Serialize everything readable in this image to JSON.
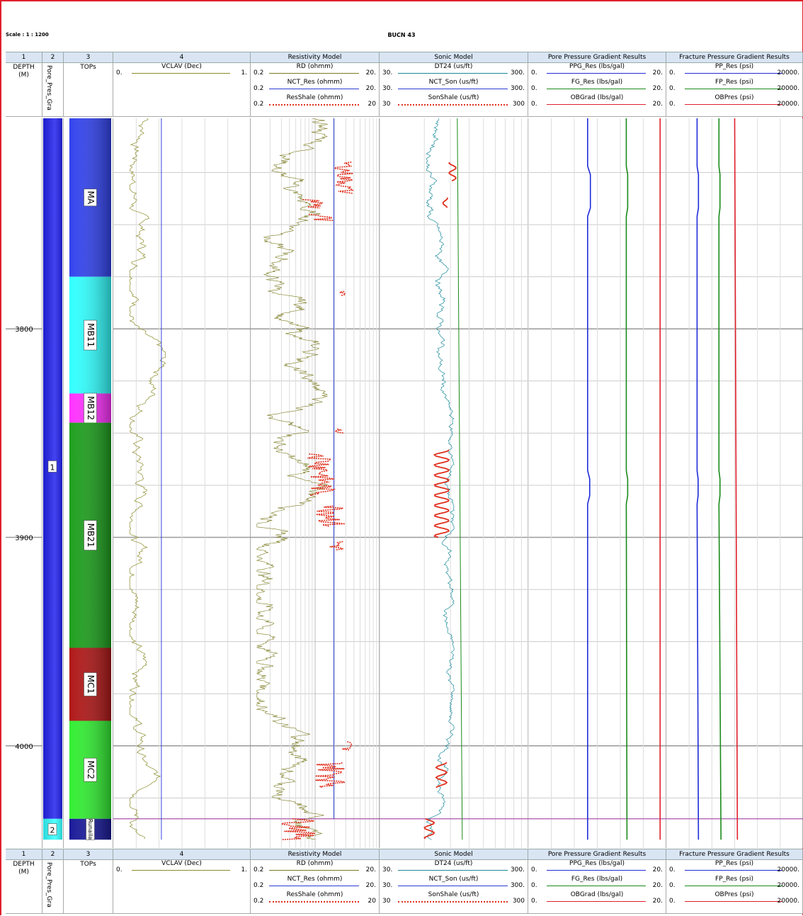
{
  "header": {
    "scale": "Scale : 1 : 1200",
    "well": "BUCN 43"
  },
  "track_numbers": [
    "1",
    "2",
    "3",
    "4",
    "",
    "",
    "",
    ""
  ],
  "tracks": [
    {
      "number": "1",
      "title": "DEPTH (M)"
    },
    {
      "number": "2",
      "title": "Pore_Pres_Gra"
    },
    {
      "number": "3",
      "title": "TOPs"
    },
    {
      "number": "4",
      "title": "",
      "curves": [
        {
          "name": "VCLAV (Dec)",
          "min": "0.",
          "max": "1.",
          "color": "#8b8b2b"
        }
      ]
    },
    {
      "number": "",
      "title": "Resistivity Model",
      "curves": [
        {
          "name": "RD (ohmm)",
          "min": "0.2",
          "max": "20.",
          "color": "#7a7a20"
        },
        {
          "name": "NCT_Res (ohmm)",
          "min": "0.2",
          "max": "20.",
          "color": "#2b3bd6"
        },
        {
          "name": "ResShale (ohmm)",
          "min": "0.2",
          "max": "20",
          "color": "#e0301e"
        }
      ]
    },
    {
      "number": "",
      "title": "Sonic Model",
      "curves": [
        {
          "name": "DT24 (us/ft)",
          "min": "30.",
          "max": "300.",
          "color": "#1a8a9a"
        },
        {
          "name": "NCT_Son (us/ft)",
          "min": "30.",
          "max": "300.",
          "color": "#2b3bd6"
        },
        {
          "name": "SonShale (us/ft)",
          "min": "30",
          "max": "300",
          "color": "#e0301e"
        }
      ]
    },
    {
      "number": "",
      "title": "Pore Pressure Gradient Results",
      "curves": [
        {
          "name": "PPG_Res (lbs/gal)",
          "min": "0.",
          "max": "20.",
          "color": "#1f2bd8"
        },
        {
          "name": "FG_Res (lbs/gal)",
          "min": "0.",
          "max": "20.",
          "color": "#1a8a1a"
        },
        {
          "name": "OBGrad (lbs/gal)",
          "min": "0.",
          "max": "20.",
          "color": "#e0202c"
        }
      ]
    },
    {
      "number": "",
      "title": "Fracture Pressure Gradient Results",
      "curves": [
        {
          "name": "PP_Res (psi)",
          "min": "0.",
          "max": "20000.",
          "color": "#1f2bd8"
        },
        {
          "name": "FP_Res (psi)",
          "min": "0.",
          "max": "20000.",
          "color": "#1a8a1a"
        },
        {
          "name": "OBPres (psi)",
          "min": "0.",
          "max": "20000.",
          "color": "#e0202c"
        }
      ]
    }
  ],
  "chart_data": {
    "type": "line",
    "title": "BUCN 43",
    "ylabel": "DEPTH (M)",
    "depth_range": [
      3699,
      4049
    ],
    "depth_ticks": [
      3800,
      3900,
      4000
    ],
    "zones_track2": [
      {
        "label": "1",
        "top": 3699,
        "bottom": 4035,
        "color": "#2222ee"
      },
      {
        "label": "2",
        "top": 4035,
        "bottom": 4045,
        "color": "#33ffff"
      }
    ],
    "formation_tops": [
      {
        "name": "MA",
        "top": 3699,
        "bottom": 3775,
        "color": "#3344ee"
      },
      {
        "name": "MB11",
        "top": 3775,
        "bottom": 3831,
        "color": "#33ffff"
      },
      {
        "name": "MB12",
        "top": 3831,
        "bottom": 3845,
        "color": "#ff33ff"
      },
      {
        "name": "MB21",
        "top": 3845,
        "bottom": 3953,
        "color": "#1ea01e"
      },
      {
        "name": "MC1",
        "top": 3953,
        "bottom": 3988,
        "color": "#b01818"
      },
      {
        "name": "MC2",
        "top": 3988,
        "bottom": 4035,
        "color": "#33ee33"
      },
      {
        "name": "Runaila",
        "top": 4035,
        "bottom": 4045,
        "color": "#1a1a9a"
      }
    ],
    "series": [
      {
        "name": "NCT_Res (ohmm)",
        "constant": 3.9
      },
      {
        "name": "NCT_Son (us/ft)",
        "points": [
          [
            3699,
            100
          ],
          [
            4045,
            108
          ]
        ]
      },
      {
        "name": "PPG_Res (lbs/gal)",
        "points": [
          [
            3699,
            8.6
          ],
          [
            3722,
            8.6
          ],
          [
            3726,
            9.0
          ],
          [
            3742,
            9.0
          ],
          [
            3746,
            8.6
          ],
          [
            3868,
            8.6
          ],
          [
            3872,
            8.9
          ],
          [
            3880,
            8.9
          ],
          [
            3884,
            8.6
          ],
          [
            4045,
            8.6
          ]
        ]
      },
      {
        "name": "FG_Res (lbs/gal)",
        "points": [
          [
            3699,
            14.2
          ],
          [
            3722,
            14.2
          ],
          [
            3726,
            14.4
          ],
          [
            3742,
            14.4
          ],
          [
            3746,
            14.2
          ],
          [
            3868,
            14.2
          ],
          [
            3872,
            14.4
          ],
          [
            3880,
            14.4
          ],
          [
            3884,
            14.2
          ],
          [
            4045,
            14.3
          ]
        ]
      },
      {
        "name": "OBGrad (lbs/gal)",
        "points": [
          [
            3699,
            19.1
          ],
          [
            4045,
            19.1
          ]
        ]
      },
      {
        "name": "PP_Res (psi)",
        "points": [
          [
            3699,
            4500
          ],
          [
            3722,
            4500
          ],
          [
            3726,
            4700
          ],
          [
            3742,
            4700
          ],
          [
            3746,
            4500
          ],
          [
            3868,
            4500
          ],
          [
            3872,
            4650
          ],
          [
            3880,
            4650
          ],
          [
            3884,
            4500
          ],
          [
            4045,
            4700
          ]
        ]
      },
      {
        "name": "FP_Res (psi)",
        "points": [
          [
            3699,
            7700
          ],
          [
            3722,
            7700
          ],
          [
            3726,
            7850
          ],
          [
            3742,
            7850
          ],
          [
            3746,
            7700
          ],
          [
            3868,
            7700
          ],
          [
            3872,
            7850
          ],
          [
            3880,
            7850
          ],
          [
            3884,
            7700
          ],
          [
            4045,
            8000
          ]
        ]
      },
      {
        "name": "OBPres (psi)",
        "points": [
          [
            3699,
            10000
          ],
          [
            4045,
            10400
          ]
        ]
      }
    ],
    "grid": true
  }
}
